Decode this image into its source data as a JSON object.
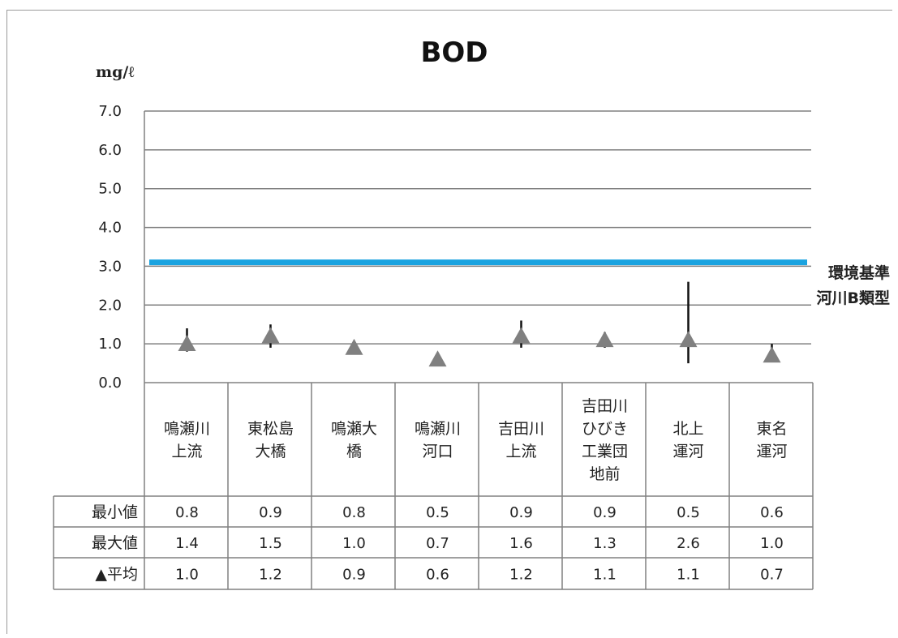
{
  "chart_data": {
    "type": "scatter",
    "title": "BOD",
    "ylabel": "mg/ℓ",
    "xlabel": "",
    "ylim": [
      0,
      7
    ],
    "y_ticks": [
      "0.0",
      "1.0",
      "2.0",
      "3.0",
      "4.0",
      "5.0",
      "6.0",
      "7.0"
    ],
    "grid": "horizontal",
    "categories": [
      [
        "鳴瀬川",
        "上流"
      ],
      [
        "東松島",
        "大橋"
      ],
      [
        "鳴瀬大",
        "橋"
      ],
      [
        "鳴瀬川",
        "河口"
      ],
      [
        "吉田川",
        "上流"
      ],
      [
        "吉田川",
        "ひびき",
        "工業団",
        "地前"
      ],
      [
        "北上",
        "運河"
      ],
      [
        "東名",
        "運河"
      ]
    ],
    "series": [
      {
        "name": "最小値",
        "values": [
          0.8,
          0.9,
          0.8,
          0.5,
          0.9,
          0.9,
          0.5,
          0.6
        ]
      },
      {
        "name": "最大値",
        "values": [
          1.4,
          1.5,
          1.0,
          0.7,
          1.6,
          1.3,
          2.6,
          1.0
        ]
      },
      {
        "name": "▲平均",
        "values": [
          1.0,
          1.2,
          0.9,
          0.6,
          1.2,
          1.1,
          1.1,
          0.7
        ]
      }
    ],
    "table_values": [
      [
        "0.8",
        "0.9",
        "0.8",
        "0.5",
        "0.9",
        "0.9",
        "0.5",
        "0.6"
      ],
      [
        "1.4",
        "1.5",
        "1.0",
        "0.7",
        "1.6",
        "1.3",
        "2.6",
        "1.0"
      ],
      [
        "1.0",
        "1.2",
        "0.9",
        "0.6",
        "1.2",
        "1.1",
        "1.1",
        "0.7"
      ]
    ],
    "reference_line": {
      "value": 3.1,
      "label": [
        "環境基準",
        "河川B類型"
      ]
    },
    "colors": {
      "reference": "#1aa3e0",
      "marker": "#808080",
      "whisker": "#111111",
      "grid": "#808080",
      "table": "#808080"
    }
  }
}
